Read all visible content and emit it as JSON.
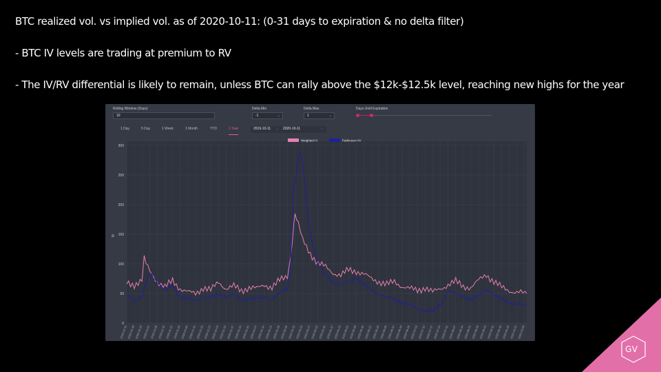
{
  "slide": {
    "title": "BTC realized vol. vs implied vol. as of 2020-10-11: (0-31 days to expiration & no delta filter)",
    "bullets": [
      "- BTC IV levels are trading at premium to RV",
      "- The IV/RV differential is likely to remain, unless BTC can rally above the $12k-$12.5k level, reaching new highs for the year"
    ],
    "logo_text": "GV"
  },
  "controls": {
    "rolling_window": {
      "label": "Rolling Window (Days)",
      "value": "10"
    },
    "delta_min": {
      "label": "Delta Min",
      "value": "-1"
    },
    "delta_max": {
      "label": "Delta Max",
      "value": "1"
    },
    "days_until_expiration": {
      "label": "Days Until Expiration"
    },
    "date_from": "2019-10-11",
    "date_to": "2020-10-11",
    "tabs": [
      "1 Day",
      "5 Day",
      "1 Week",
      "1 Month",
      "YTD",
      "1 Year"
    ],
    "active_tab": "1 Year"
  },
  "colors": {
    "iv": "#e77fb3",
    "rv": "#1f1f9e",
    "accent": "#e05c9a",
    "panel_bg": "#353a45",
    "grid": "#434957",
    "badge": "#e36fa8"
  },
  "chart_data": {
    "type": "line",
    "title": "",
    "xlabel": "",
    "ylabel": "IV",
    "ylim": [
      0,
      300
    ],
    "yticks": [
      0,
      50,
      100,
      150,
      200,
      250,
      300
    ],
    "x_range": [
      "2019-10-11",
      "2020-10-11"
    ],
    "legend_position": "top-center",
    "grid": true,
    "series": [
      {
        "name": "Weighted IV",
        "color": "#e77fb3",
        "points": [
          [
            "2019-10-11",
            68
          ],
          [
            "2019-10-18",
            65
          ],
          [
            "2019-10-25",
            72
          ],
          [
            "2019-10-27",
            108
          ],
          [
            "2019-11-01",
            88
          ],
          [
            "2019-11-08",
            70
          ],
          [
            "2019-11-15",
            60
          ],
          [
            "2019-11-22",
            72
          ],
          [
            "2019-11-29",
            58
          ],
          [
            "2019-12-06",
            52
          ],
          [
            "2019-12-13",
            50
          ],
          [
            "2019-12-20",
            60
          ],
          [
            "2019-12-27",
            55
          ],
          [
            "2020-01-03",
            70
          ],
          [
            "2020-01-10",
            58
          ],
          [
            "2020-01-17",
            62
          ],
          [
            "2020-01-24",
            55
          ],
          [
            "2020-01-31",
            60
          ],
          [
            "2020-02-07",
            58
          ],
          [
            "2020-02-14",
            65
          ],
          [
            "2020-02-21",
            60
          ],
          [
            "2020-02-28",
            72
          ],
          [
            "2020-03-06",
            80
          ],
          [
            "2020-03-09",
            110
          ],
          [
            "2020-03-12",
            165
          ],
          [
            "2020-03-13",
            185
          ],
          [
            "2020-03-16",
            170
          ],
          [
            "2020-03-20",
            140
          ],
          [
            "2020-03-27",
            118
          ],
          [
            "2020-04-03",
            100
          ],
          [
            "2020-04-10",
            95
          ],
          [
            "2020-04-17",
            85
          ],
          [
            "2020-04-24",
            80
          ],
          [
            "2020-05-01",
            90
          ],
          [
            "2020-05-08",
            88
          ],
          [
            "2020-05-15",
            82
          ],
          [
            "2020-05-22",
            75
          ],
          [
            "2020-05-29",
            70
          ],
          [
            "2020-06-05",
            65
          ],
          [
            "2020-06-12",
            70
          ],
          [
            "2020-06-19",
            62
          ],
          [
            "2020-06-26",
            58
          ],
          [
            "2020-07-03",
            55
          ],
          [
            "2020-07-10",
            60
          ],
          [
            "2020-07-17",
            52
          ],
          [
            "2020-07-24",
            58
          ],
          [
            "2020-07-31",
            65
          ],
          [
            "2020-08-07",
            70
          ],
          [
            "2020-08-14",
            62
          ],
          [
            "2020-08-21",
            60
          ],
          [
            "2020-08-28",
            72
          ],
          [
            "2020-09-04",
            82
          ],
          [
            "2020-09-11",
            70
          ],
          [
            "2020-09-18",
            60
          ],
          [
            "2020-09-25",
            55
          ],
          [
            "2020-10-02",
            52
          ],
          [
            "2020-10-11",
            50
          ]
        ]
      },
      {
        "name": "Parkinson HV",
        "color": "#1f1f9e",
        "points": [
          [
            "2019-10-11",
            48
          ],
          [
            "2019-10-18",
            38
          ],
          [
            "2019-10-25",
            45
          ],
          [
            "2019-10-29",
            70
          ],
          [
            "2019-11-01",
            85
          ],
          [
            "2019-11-08",
            70
          ],
          [
            "2019-11-15",
            55
          ],
          [
            "2019-11-22",
            62
          ],
          [
            "2019-11-29",
            45
          ],
          [
            "2019-12-06",
            40
          ],
          [
            "2019-12-13",
            38
          ],
          [
            "2019-12-20",
            45
          ],
          [
            "2019-12-27",
            42
          ],
          [
            "2020-01-03",
            50
          ],
          [
            "2020-01-10",
            45
          ],
          [
            "2020-01-17",
            48
          ],
          [
            "2020-01-24",
            40
          ],
          [
            "2020-01-31",
            42
          ],
          [
            "2020-02-07",
            40
          ],
          [
            "2020-02-14",
            45
          ],
          [
            "2020-02-21",
            40
          ],
          [
            "2020-02-28",
            50
          ],
          [
            "2020-03-06",
            60
          ],
          [
            "2020-03-09",
            105
          ],
          [
            "2020-03-12",
            228
          ],
          [
            "2020-03-16",
            280
          ],
          [
            "2020-03-18",
            285
          ],
          [
            "2020-03-20",
            265
          ],
          [
            "2020-03-24",
            200
          ],
          [
            "2020-03-27",
            150
          ],
          [
            "2020-04-03",
            100
          ],
          [
            "2020-04-10",
            80
          ],
          [
            "2020-04-17",
            70
          ],
          [
            "2020-04-24",
            65
          ],
          [
            "2020-05-01",
            70
          ],
          [
            "2020-05-08",
            78
          ],
          [
            "2020-05-15",
            65
          ],
          [
            "2020-05-22",
            55
          ],
          [
            "2020-05-29",
            50
          ],
          [
            "2020-06-05",
            42
          ],
          [
            "2020-06-12",
            40
          ],
          [
            "2020-06-19",
            35
          ],
          [
            "2020-06-26",
            30
          ],
          [
            "2020-07-03",
            25
          ],
          [
            "2020-07-10",
            22
          ],
          [
            "2020-07-17",
            20
          ],
          [
            "2020-07-24",
            30
          ],
          [
            "2020-07-31",
            55
          ],
          [
            "2020-08-07",
            48
          ],
          [
            "2020-08-14",
            45
          ],
          [
            "2020-08-21",
            40
          ],
          [
            "2020-08-28",
            45
          ],
          [
            "2020-09-04",
            58
          ],
          [
            "2020-09-11",
            48
          ],
          [
            "2020-09-18",
            40
          ],
          [
            "2020-09-25",
            35
          ],
          [
            "2020-10-02",
            32
          ],
          [
            "2020-10-11",
            30
          ]
        ]
      }
    ]
  }
}
